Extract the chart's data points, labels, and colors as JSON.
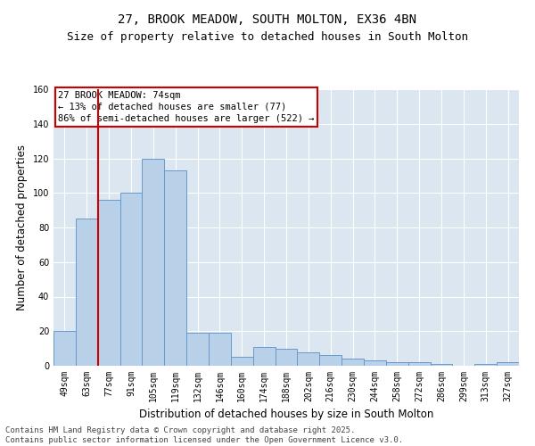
{
  "title_line1": "27, BROOK MEADOW, SOUTH MOLTON, EX36 4BN",
  "title_line2": "Size of property relative to detached houses in South Molton",
  "xlabel": "Distribution of detached houses by size in South Molton",
  "ylabel": "Number of detached properties",
  "categories": [
    "49sqm",
    "63sqm",
    "77sqm",
    "91sqm",
    "105sqm",
    "119sqm",
    "132sqm",
    "146sqm",
    "160sqm",
    "174sqm",
    "188sqm",
    "202sqm",
    "216sqm",
    "230sqm",
    "244sqm",
    "258sqm",
    "272sqm",
    "286sqm",
    "299sqm",
    "313sqm",
    "327sqm"
  ],
  "values": [
    20,
    85,
    96,
    100,
    120,
    113,
    19,
    19,
    5,
    11,
    10,
    8,
    6,
    4,
    3,
    2,
    2,
    1,
    0,
    1,
    2
  ],
  "bar_color": "#b8d0e8",
  "bar_edge_color": "#6699cc",
  "background_color": "#dce6f0",
  "plot_bg_color": "#dce6f0",
  "grid_color": "#ffffff",
  "legend_text_line1": "27 BROOK MEADOW: 74sqm",
  "legend_text_line2": "← 13% of detached houses are smaller (77)",
  "legend_text_line3": "86% of semi-detached houses are larger (522) →",
  "legend_box_color": "#ffffff",
  "legend_box_edge_color": "#cc0000",
  "vline_color": "#cc0000",
  "vline_x_index": 2,
  "ylim": [
    0,
    160
  ],
  "yticks": [
    0,
    20,
    40,
    60,
    80,
    100,
    120,
    140,
    160
  ],
  "footer_line1": "Contains HM Land Registry data © Crown copyright and database right 2025.",
  "footer_line2": "Contains public sector information licensed under the Open Government Licence v3.0.",
  "title_fontsize": 10,
  "subtitle_fontsize": 9,
  "axis_label_fontsize": 8.5,
  "tick_fontsize": 7,
  "legend_fontsize": 7.5,
  "footer_fontsize": 6.5
}
